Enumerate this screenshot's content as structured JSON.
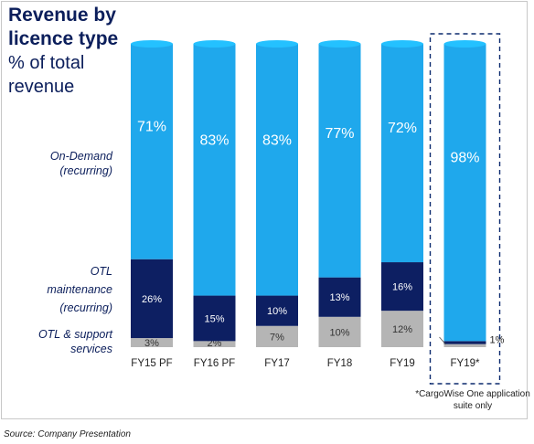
{
  "header": {
    "title": "Revenue by licence type",
    "title_line1": "Revenue by",
    "title_line2": "licence type",
    "subtitle_line1": "% of total",
    "subtitle_line2": "revenue"
  },
  "footnote": {
    "line1": "*CargoWise One application",
    "line2": "suite only"
  },
  "source": "Source: Company Presentation",
  "colors": {
    "on_demand": "#1fa8ec",
    "otl_maintenance": "#0d1f62",
    "otl_support": "#b5b5b5",
    "title": "#0b1e5b"
  },
  "chart_data": {
    "type": "bar",
    "stacked": true,
    "categories": [
      "FY15 PF",
      "FY16 PF",
      "FY17",
      "FY18",
      "FY19",
      "FY19*"
    ],
    "series": [
      {
        "name_lines": [
          "OTL & support",
          "services"
        ],
        "values": [
          3,
          2,
          7,
          10,
          12,
          1
        ],
        "labels": [
          "3%",
          "2%",
          "7%",
          "10%",
          "12%",
          ""
        ]
      },
      {
        "name_lines": [
          "OTL",
          "maintenance",
          "(recurring)"
        ],
        "values": [
          26,
          15,
          10,
          13,
          16,
          1
        ],
        "labels": [
          "26%",
          "15%",
          "10%",
          "13%",
          "16%",
          "1%"
        ]
      },
      {
        "name_lines": [
          "On-Demand",
          "(recurring)"
        ],
        "values": [
          71,
          83,
          83,
          77,
          72,
          98
        ],
        "labels": [
          "71%",
          "83%",
          "83%",
          "77%",
          "72%",
          "98%"
        ]
      }
    ],
    "highlighted_category": "FY19*",
    "ylim": [
      0,
      100
    ],
    "grid": false,
    "legend": "left"
  }
}
